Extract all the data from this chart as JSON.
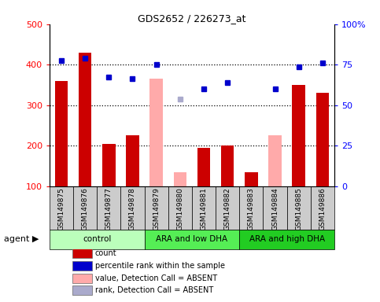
{
  "title": "GDS2652 / 226273_at",
  "samples": [
    "GSM149875",
    "GSM149876",
    "GSM149877",
    "GSM149878",
    "GSM149879",
    "GSM149880",
    "GSM149881",
    "GSM149882",
    "GSM149883",
    "GSM149884",
    "GSM149885",
    "GSM149886"
  ],
  "groups": [
    {
      "label": "control",
      "color": "#bbffbb",
      "start": 0,
      "end": 4
    },
    {
      "label": "ARA and low DHA",
      "color": "#55ee55",
      "start": 4,
      "end": 8
    },
    {
      "label": "ARA and high DHA",
      "color": "#22cc22",
      "start": 8,
      "end": 12
    }
  ],
  "bar_values": [
    360,
    430,
    205,
    225,
    null,
    null,
    195,
    200,
    135,
    null,
    350,
    330
  ],
  "bar_absent": [
    null,
    null,
    null,
    null,
    365,
    135,
    null,
    null,
    null,
    225,
    null,
    null
  ],
  "dot_values": [
    410,
    415,
    370,
    365,
    400,
    null,
    340,
    355,
    null,
    340,
    395,
    405
  ],
  "dot_absent": [
    null,
    null,
    null,
    null,
    null,
    315,
    null,
    null,
    null,
    null,
    null,
    null
  ],
  "ylim_left": [
    100,
    500
  ],
  "ylim_right": [
    0,
    100
  ],
  "yticks_left": [
    100,
    200,
    300,
    400,
    500
  ],
  "yticks_right": [
    0,
    25,
    50,
    75,
    100
  ],
  "bar_color": "#cc0000",
  "bar_absent_color": "#ffaaaa",
  "dot_color": "#0000cc",
  "dot_absent_color": "#aaaacc",
  "grid_color": "#000000",
  "tick_bg_color": "#cccccc",
  "legend_items": [
    {
      "color": "#cc0000",
      "label": "count"
    },
    {
      "color": "#0000cc",
      "label": "percentile rank within the sample"
    },
    {
      "color": "#ffaaaa",
      "label": "value, Detection Call = ABSENT"
    },
    {
      "color": "#aaaacc",
      "label": "rank, Detection Call = ABSENT"
    }
  ]
}
